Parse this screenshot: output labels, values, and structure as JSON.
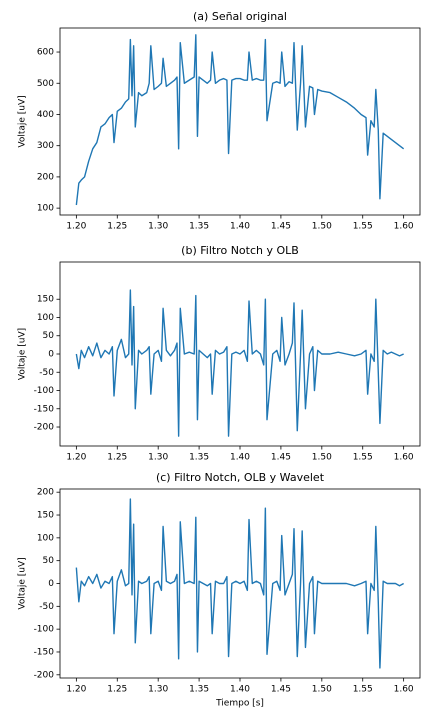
{
  "chart_data": [
    {
      "type": "line",
      "title": "(a) Señal original",
      "ylabel": "Voltaje [uV]",
      "x": [
        1.2,
        1.203,
        1.206,
        1.21,
        1.215,
        1.22,
        1.225,
        1.23,
        1.235,
        1.24,
        1.244,
        1.246,
        1.25,
        1.255,
        1.26,
        1.264,
        1.266,
        1.268,
        1.27,
        1.272,
        1.276,
        1.28,
        1.286,
        1.289,
        1.291,
        1.295,
        1.3,
        1.304,
        1.306,
        1.31,
        1.315,
        1.32,
        1.323,
        1.325,
        1.327,
        1.332,
        1.338,
        1.344,
        1.346,
        1.348,
        1.35,
        1.355,
        1.36,
        1.364,
        1.366,
        1.37,
        1.375,
        1.38,
        1.384,
        1.386,
        1.39,
        1.395,
        1.4,
        1.405,
        1.409,
        1.411,
        1.415,
        1.42,
        1.425,
        1.429,
        1.431,
        1.433,
        1.44,
        1.445,
        1.449,
        1.451,
        1.455,
        1.46,
        1.464,
        1.466,
        1.47,
        1.474,
        1.476,
        1.48,
        1.485,
        1.489,
        1.491,
        1.495,
        1.5,
        1.51,
        1.52,
        1.53,
        1.54,
        1.548,
        1.554,
        1.556,
        1.56,
        1.564,
        1.566,
        1.569,
        1.571,
        1.575,
        1.58,
        1.585,
        1.59,
        1.595,
        1.6
      ],
      "series": [
        {
          "color": "#1f77b4",
          "values": [
            110,
            180,
            190,
            200,
            250,
            290,
            310,
            360,
            370,
            390,
            400,
            310,
            410,
            420,
            440,
            450,
            640,
            460,
            620,
            360,
            470,
            460,
            470,
            500,
            620,
            480,
            490,
            500,
            580,
            490,
            500,
            510,
            520,
            290,
            630,
            500,
            510,
            520,
            655,
            330,
            520,
            510,
            500,
            510,
            600,
            500,
            510,
            515,
            510,
            275,
            510,
            515,
            515,
            510,
            510,
            600,
            510,
            515,
            510,
            510,
            640,
            380,
            500,
            505,
            500,
            600,
            490,
            505,
            500,
            630,
            350,
            500,
            620,
            360,
            490,
            485,
            400,
            480,
            475,
            470,
            455,
            440,
            420,
            400,
            390,
            270,
            380,
            360,
            480,
            350,
            130,
            340,
            330,
            320,
            310,
            300,
            290
          ]
        }
      ],
      "xlim": [
        1.18,
        1.62
      ],
      "ylim": [
        78,
        677
      ],
      "xticks": [
        {
          "value": 1.2,
          "label": "1.20"
        },
        {
          "value": 1.25,
          "label": "1.25"
        },
        {
          "value": 1.3,
          "label": "1.30"
        },
        {
          "value": 1.35,
          "label": "1.35"
        },
        {
          "value": 1.4,
          "label": "1.40"
        },
        {
          "value": 1.45,
          "label": "1.45"
        },
        {
          "value": 1.5,
          "label": "1.50"
        },
        {
          "value": 1.55,
          "label": "1.55"
        },
        {
          "value": 1.6,
          "label": "1.60"
        }
      ],
      "yticks": [
        100,
        200,
        300,
        400,
        500,
        600
      ],
      "grid": false
    },
    {
      "type": "line",
      "title": "(b) Filtro Notch y OLB",
      "ylabel": "Voltaje [uV]",
      "x": [
        1.2,
        1.203,
        1.206,
        1.21,
        1.215,
        1.22,
        1.225,
        1.23,
        1.235,
        1.24,
        1.244,
        1.246,
        1.25,
        1.255,
        1.26,
        1.264,
        1.266,
        1.268,
        1.27,
        1.272,
        1.276,
        1.28,
        1.286,
        1.289,
        1.291,
        1.295,
        1.3,
        1.304,
        1.306,
        1.31,
        1.315,
        1.32,
        1.323,
        1.325,
        1.327,
        1.332,
        1.338,
        1.344,
        1.346,
        1.348,
        1.35,
        1.355,
        1.36,
        1.364,
        1.366,
        1.37,
        1.375,
        1.38,
        1.384,
        1.386,
        1.39,
        1.395,
        1.4,
        1.405,
        1.409,
        1.411,
        1.415,
        1.42,
        1.425,
        1.429,
        1.431,
        1.433,
        1.44,
        1.445,
        1.449,
        1.451,
        1.455,
        1.46,
        1.464,
        1.466,
        1.47,
        1.474,
        1.476,
        1.48,
        1.485,
        1.489,
        1.491,
        1.495,
        1.5,
        1.51,
        1.52,
        1.53,
        1.54,
        1.548,
        1.554,
        1.556,
        1.56,
        1.564,
        1.566,
        1.569,
        1.571,
        1.575,
        1.58,
        1.585,
        1.59,
        1.595,
        1.6
      ],
      "series": [
        {
          "color": "#1f77b4",
          "values": [
            0,
            -40,
            10,
            -10,
            20,
            -5,
            30,
            -10,
            10,
            0,
            20,
            -115,
            10,
            40,
            -10,
            0,
            175,
            -30,
            130,
            -150,
            10,
            0,
            10,
            20,
            -110,
            0,
            10,
            -20,
            125,
            10,
            -5,
            10,
            30,
            -225,
            125,
            0,
            5,
            0,
            160,
            -180,
            10,
            0,
            -10,
            0,
            -110,
            10,
            0,
            5,
            20,
            -225,
            0,
            5,
            0,
            10,
            -20,
            145,
            0,
            10,
            0,
            -30,
            150,
            -180,
            0,
            10,
            -20,
            100,
            -30,
            0,
            30,
            140,
            -210,
            0,
            120,
            -150,
            0,
            20,
            -100,
            10,
            0,
            0,
            5,
            0,
            -5,
            0,
            10,
            -110,
            0,
            -20,
            150,
            -50,
            -190,
            10,
            0,
            5,
            0,
            -5,
            0
          ]
        }
      ],
      "xlim": [
        1.18,
        1.62
      ],
      "ylim": [
        -252,
        252
      ],
      "xticks": [
        {
          "value": 1.2,
          "label": "1.20"
        },
        {
          "value": 1.25,
          "label": "1.25"
        },
        {
          "value": 1.3,
          "label": "1.30"
        },
        {
          "value": 1.35,
          "label": "1.35"
        },
        {
          "value": 1.4,
          "label": "1.40"
        },
        {
          "value": 1.45,
          "label": "1.45"
        },
        {
          "value": 1.5,
          "label": "1.50"
        },
        {
          "value": 1.55,
          "label": "1.55"
        },
        {
          "value": 1.6,
          "label": "1.60"
        }
      ],
      "yticks": [
        -200,
        -150,
        -100,
        -50,
        0,
        50,
        100,
        150
      ],
      "grid": false
    },
    {
      "type": "line",
      "title": "(c) Filtro Notch, OLB y Wavelet",
      "ylabel": "Voltaje [uV]",
      "xlabel": "Tiempo [s]",
      "x": [
        1.2,
        1.203,
        1.206,
        1.21,
        1.215,
        1.22,
        1.225,
        1.23,
        1.235,
        1.24,
        1.244,
        1.246,
        1.25,
        1.255,
        1.26,
        1.264,
        1.266,
        1.268,
        1.27,
        1.272,
        1.276,
        1.28,
        1.286,
        1.289,
        1.291,
        1.295,
        1.3,
        1.304,
        1.306,
        1.31,
        1.315,
        1.32,
        1.323,
        1.325,
        1.327,
        1.332,
        1.338,
        1.344,
        1.346,
        1.348,
        1.35,
        1.355,
        1.36,
        1.364,
        1.366,
        1.37,
        1.375,
        1.38,
        1.384,
        1.386,
        1.39,
        1.395,
        1.4,
        1.405,
        1.409,
        1.411,
        1.415,
        1.42,
        1.425,
        1.429,
        1.431,
        1.433,
        1.44,
        1.445,
        1.449,
        1.451,
        1.455,
        1.46,
        1.464,
        1.466,
        1.47,
        1.474,
        1.476,
        1.48,
        1.485,
        1.489,
        1.491,
        1.495,
        1.5,
        1.51,
        1.52,
        1.53,
        1.54,
        1.548,
        1.554,
        1.556,
        1.56,
        1.564,
        1.566,
        1.569,
        1.571,
        1.575,
        1.58,
        1.585,
        1.59,
        1.595,
        1.6
      ],
      "series": [
        {
          "color": "#1f77b4",
          "values": [
            35,
            -40,
            5,
            -5,
            15,
            0,
            20,
            -10,
            5,
            0,
            15,
            -110,
            5,
            30,
            -5,
            0,
            185,
            -25,
            130,
            -130,
            5,
            0,
            5,
            15,
            -110,
            0,
            5,
            -15,
            125,
            5,
            0,
            5,
            20,
            -165,
            135,
            0,
            5,
            0,
            145,
            -150,
            5,
            0,
            -5,
            0,
            -110,
            5,
            0,
            0,
            15,
            -160,
            0,
            5,
            0,
            5,
            -15,
            140,
            0,
            5,
            0,
            -25,
            165,
            -155,
            0,
            5,
            -15,
            105,
            -25,
            0,
            20,
            120,
            -160,
            0,
            115,
            -140,
            0,
            15,
            -110,
            5,
            0,
            0,
            0,
            0,
            -5,
            0,
            5,
            -110,
            0,
            -15,
            125,
            -40,
            -185,
            5,
            0,
            0,
            0,
            -5,
            0
          ]
        }
      ],
      "xlim": [
        1.18,
        1.62
      ],
      "ylim": [
        -207,
        207
      ],
      "xticks": [
        {
          "value": 1.2,
          "label": "1.20"
        },
        {
          "value": 1.25,
          "label": "1.25"
        },
        {
          "value": 1.3,
          "label": "1.30"
        },
        {
          "value": 1.35,
          "label": "1.35"
        },
        {
          "value": 1.4,
          "label": "1.40"
        },
        {
          "value": 1.45,
          "label": "1.45"
        },
        {
          "value": 1.5,
          "label": "1.50"
        },
        {
          "value": 1.55,
          "label": "1.55"
        },
        {
          "value": 1.6,
          "label": "1.60"
        }
      ],
      "yticks": [
        -200,
        -150,
        -100,
        -50,
        0,
        50,
        100,
        150,
        200
      ],
      "grid": false
    }
  ]
}
